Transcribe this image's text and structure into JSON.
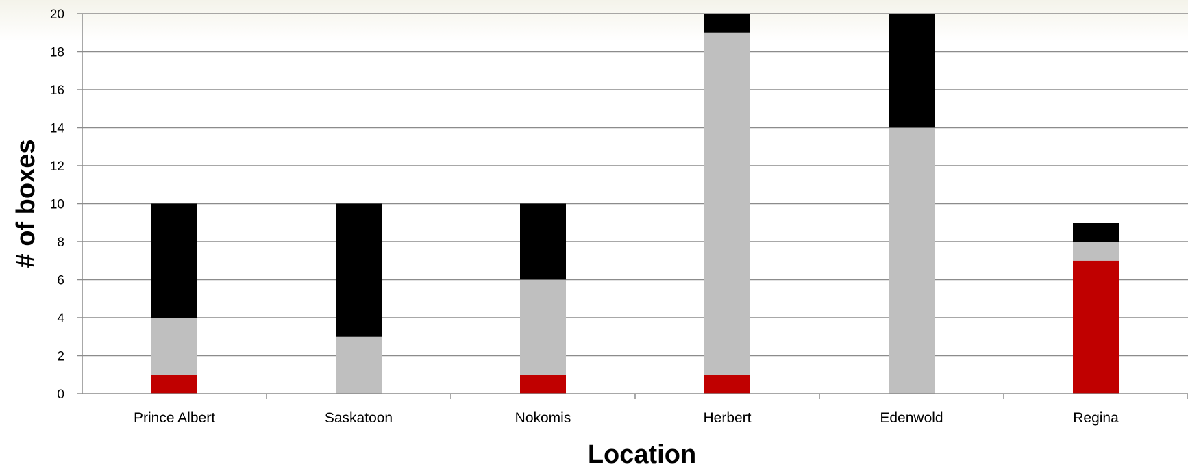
{
  "chart_data": {
    "type": "bar",
    "stacked": true,
    "categories": [
      "Prince Albert",
      "Saskatoon",
      "Nokomis",
      "Herbert",
      "Edenwold",
      "Regina"
    ],
    "series": [
      {
        "color": "#c00000",
        "values": [
          1,
          0,
          1,
          1,
          0,
          7
        ]
      },
      {
        "color": "#bfbfbf",
        "values": [
          3,
          3,
          5,
          18,
          14,
          1
        ]
      },
      {
        "color": "#000000",
        "values": [
          6,
          7,
          4,
          1,
          6,
          1
        ]
      }
    ],
    "title": "",
    "xlabel": "Location",
    "ylabel": "# of boxes",
    "ylim": [
      0,
      20
    ],
    "yticks": [
      0,
      2,
      4,
      6,
      8,
      10,
      12,
      14,
      16,
      18,
      20
    ],
    "grid": true,
    "legend": "none"
  }
}
